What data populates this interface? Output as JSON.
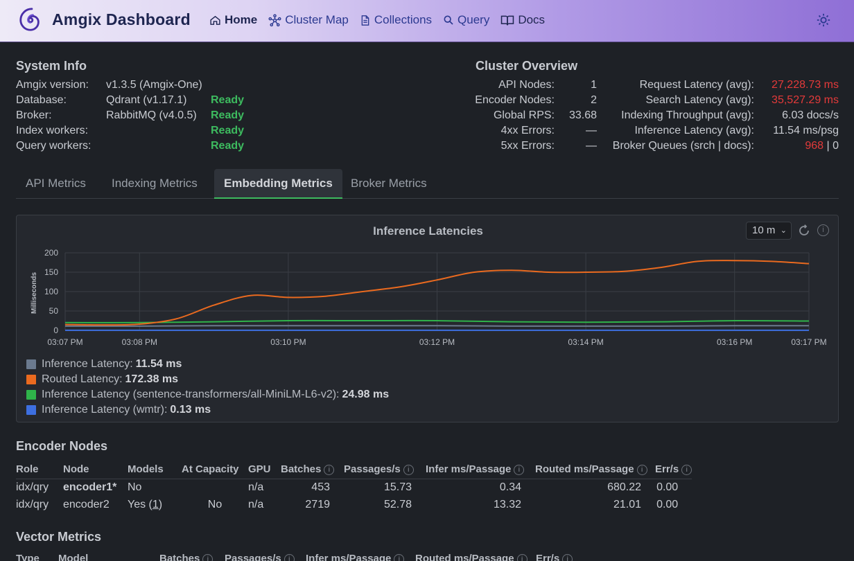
{
  "header": {
    "title": "Amgix Dashboard",
    "nav": [
      {
        "label": "Home",
        "icon": "home-icon",
        "active": true
      },
      {
        "label": "Cluster Map",
        "icon": "network-icon"
      },
      {
        "label": "Collections",
        "icon": "document-icon"
      },
      {
        "label": "Query",
        "icon": "search-icon"
      },
      {
        "label": "Docs",
        "icon": "book-icon"
      }
    ],
    "theme_icon": "sun-icon"
  },
  "system_info": {
    "title": "System Info",
    "rows": [
      {
        "label": "Amgix version:",
        "value": "v1.3.5 (Amgix-One)",
        "status": ""
      },
      {
        "label": "Database:",
        "value": "Qdrant (v1.17.1)",
        "status": "Ready"
      },
      {
        "label": "Broker:",
        "value": "RabbitMQ (v4.0.5)",
        "status": "Ready"
      },
      {
        "label": "Index workers:",
        "value": "",
        "status": "Ready"
      },
      {
        "label": "Query workers:",
        "value": "",
        "status": "Ready"
      }
    ]
  },
  "cluster_overview": {
    "title": "Cluster Overview",
    "left": [
      {
        "label": "API Nodes:",
        "value": "1"
      },
      {
        "label": "Encoder Nodes:",
        "value": "2"
      },
      {
        "label": "Global RPS:",
        "value": "33.68"
      },
      {
        "label": "4xx Errors:",
        "value": "—"
      },
      {
        "label": "5xx Errors:",
        "value": "—"
      }
    ],
    "right": [
      {
        "label": "Request Latency (avg):",
        "value": "27,228.73 ms"
      },
      {
        "label": "Search Latency (avg):",
        "value": "35,527.29 ms"
      },
      {
        "label": "Indexing Throughput (avg):",
        "value": "6.03 docs/s"
      },
      {
        "label": "Inference Latency (avg):",
        "value": "11.54 ms/psg"
      },
      {
        "label": "Broker Queues (srch | docs):",
        "value_red": "968",
        "value_rest": " | 0"
      }
    ]
  },
  "tabs": [
    "API Metrics",
    "Indexing Metrics",
    "Embedding Metrics",
    "Broker Metrics"
  ],
  "active_tab": "Embedding Metrics",
  "chart_panel": {
    "title": "Inference Latencies",
    "range": "10 m"
  },
  "chart_data": {
    "type": "line",
    "title": "Inference Latencies",
    "ylabel": "Milliseconds",
    "xlabel": "",
    "ylim": [
      0,
      200
    ],
    "yticks": [
      0,
      50,
      100,
      150,
      200
    ],
    "x_ticks": [
      "03:07 PM",
      "03:08 PM",
      "03:10 PM",
      "03:12 PM",
      "03:14 PM",
      "03:16 PM",
      "03:17 PM"
    ],
    "x_minutes": [
      0,
      1,
      3,
      5,
      7,
      9,
      10
    ],
    "grid": true,
    "legend_position": "bottom-left",
    "series": [
      {
        "name": "Inference Latency",
        "color": "#6b7a8f",
        "summary": "11.54 ms",
        "x": [
          0,
          1,
          2,
          3,
          4,
          5,
          6,
          7,
          8,
          9,
          10
        ],
        "y": [
          11,
          11,
          12,
          12,
          12,
          12,
          11,
          11,
          11,
          12,
          12
        ]
      },
      {
        "name": "Routed Latency",
        "color": "#ea6a1f",
        "summary": "172.38 ms",
        "x": [
          0,
          0.5,
          1,
          1.5,
          2,
          2.5,
          3,
          3.5,
          4,
          4.5,
          5,
          5.5,
          6,
          6.5,
          7,
          7.5,
          8,
          8.5,
          9,
          9.5,
          10
        ],
        "y": [
          15,
          14,
          16,
          30,
          65,
          90,
          85,
          88,
          100,
          112,
          130,
          150,
          155,
          150,
          150,
          152,
          162,
          178,
          180,
          178,
          172
        ]
      },
      {
        "name": "Inference Latency (sentence-transformers/all-MiniLM-L6-v2)",
        "color": "#2fb34a",
        "summary": "24.98 ms",
        "x": [
          0,
          1,
          2,
          3,
          4,
          5,
          6,
          7,
          8,
          9,
          10
        ],
        "y": [
          20,
          20,
          22,
          25,
          25,
          25,
          22,
          21,
          22,
          25,
          24
        ]
      },
      {
        "name": "Inference Latency (wmtr)",
        "color": "#3d6fe0",
        "summary": "0.13 ms",
        "x": [
          0,
          10
        ],
        "y": [
          0.13,
          0.13
        ]
      }
    ]
  },
  "encoder_nodes": {
    "title": "Encoder Nodes",
    "columns": [
      "Role",
      "Node",
      "Models",
      "At Capacity",
      "GPU",
      "Batches",
      "Passages/s",
      "Infer ms/Passage",
      "Routed ms/Passage",
      "Err/s"
    ],
    "rows": [
      {
        "role": "idx/qry",
        "node": "encoder1*",
        "models": "No",
        "models_link": "",
        "at_capacity": "",
        "gpu": "n/a",
        "batches": "453",
        "passages": "15.73",
        "infer": "0.34",
        "routed": "680.22",
        "err": "0.00"
      },
      {
        "role": "idx/qry",
        "node": "encoder2",
        "models": "Yes (",
        "models_link": "1",
        "models_end": ")",
        "at_capacity": "No",
        "gpu": "n/a",
        "batches": "2719",
        "passages": "52.78",
        "infer": "13.32",
        "routed": "21.01",
        "err": "0.00"
      }
    ]
  },
  "vector_metrics": {
    "title": "Vector Metrics",
    "columns": [
      "Type",
      "Model",
      "Batches",
      "Passages/s",
      "Infer ms/Passage",
      "Routed ms/Passage",
      "Err/s"
    ]
  }
}
